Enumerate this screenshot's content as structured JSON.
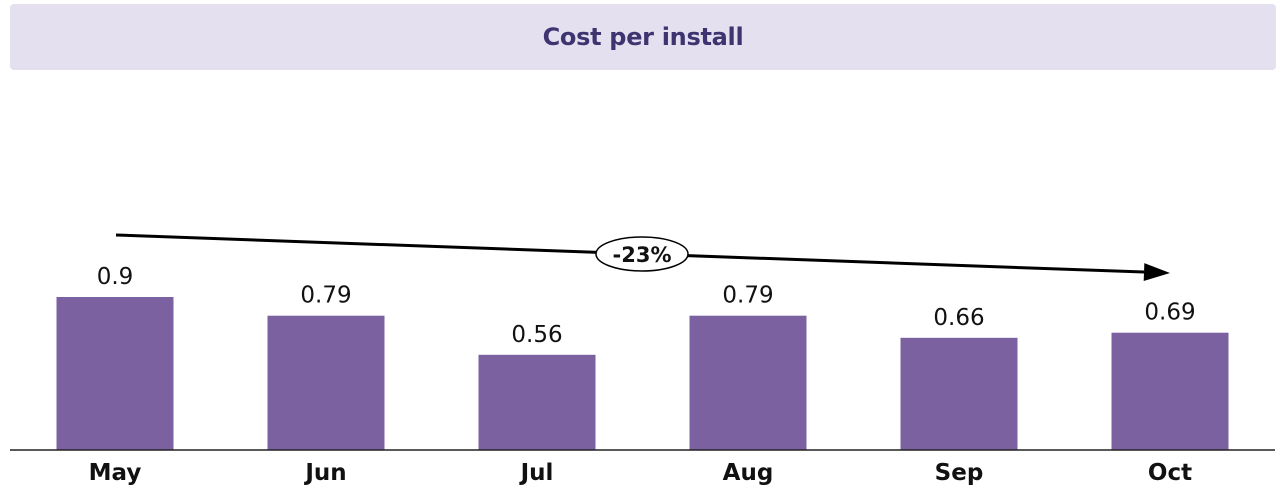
{
  "chart_data": {
    "type": "bar",
    "title": "Cost per install",
    "categories": [
      "May",
      "Jun",
      "Jul",
      "Aug",
      "Sep",
      "Oct"
    ],
    "values": [
      0.9,
      0.79,
      0.56,
      0.79,
      0.66,
      0.69
    ],
    "value_labels": [
      "0.9",
      "0.79",
      "0.56",
      "0.79",
      "0.66",
      "0.69"
    ],
    "xlabel": "",
    "ylabel": "",
    "ylim": [
      0,
      0.9
    ],
    "grid": false,
    "annotations": [
      {
        "text": "-23%",
        "from": "May",
        "to": "Oct"
      }
    ]
  },
  "colors": {
    "bar": "#7b61a0",
    "title_banner": "#e4e0f0",
    "title_text": "#3d3470",
    "axis": "#222222"
  }
}
